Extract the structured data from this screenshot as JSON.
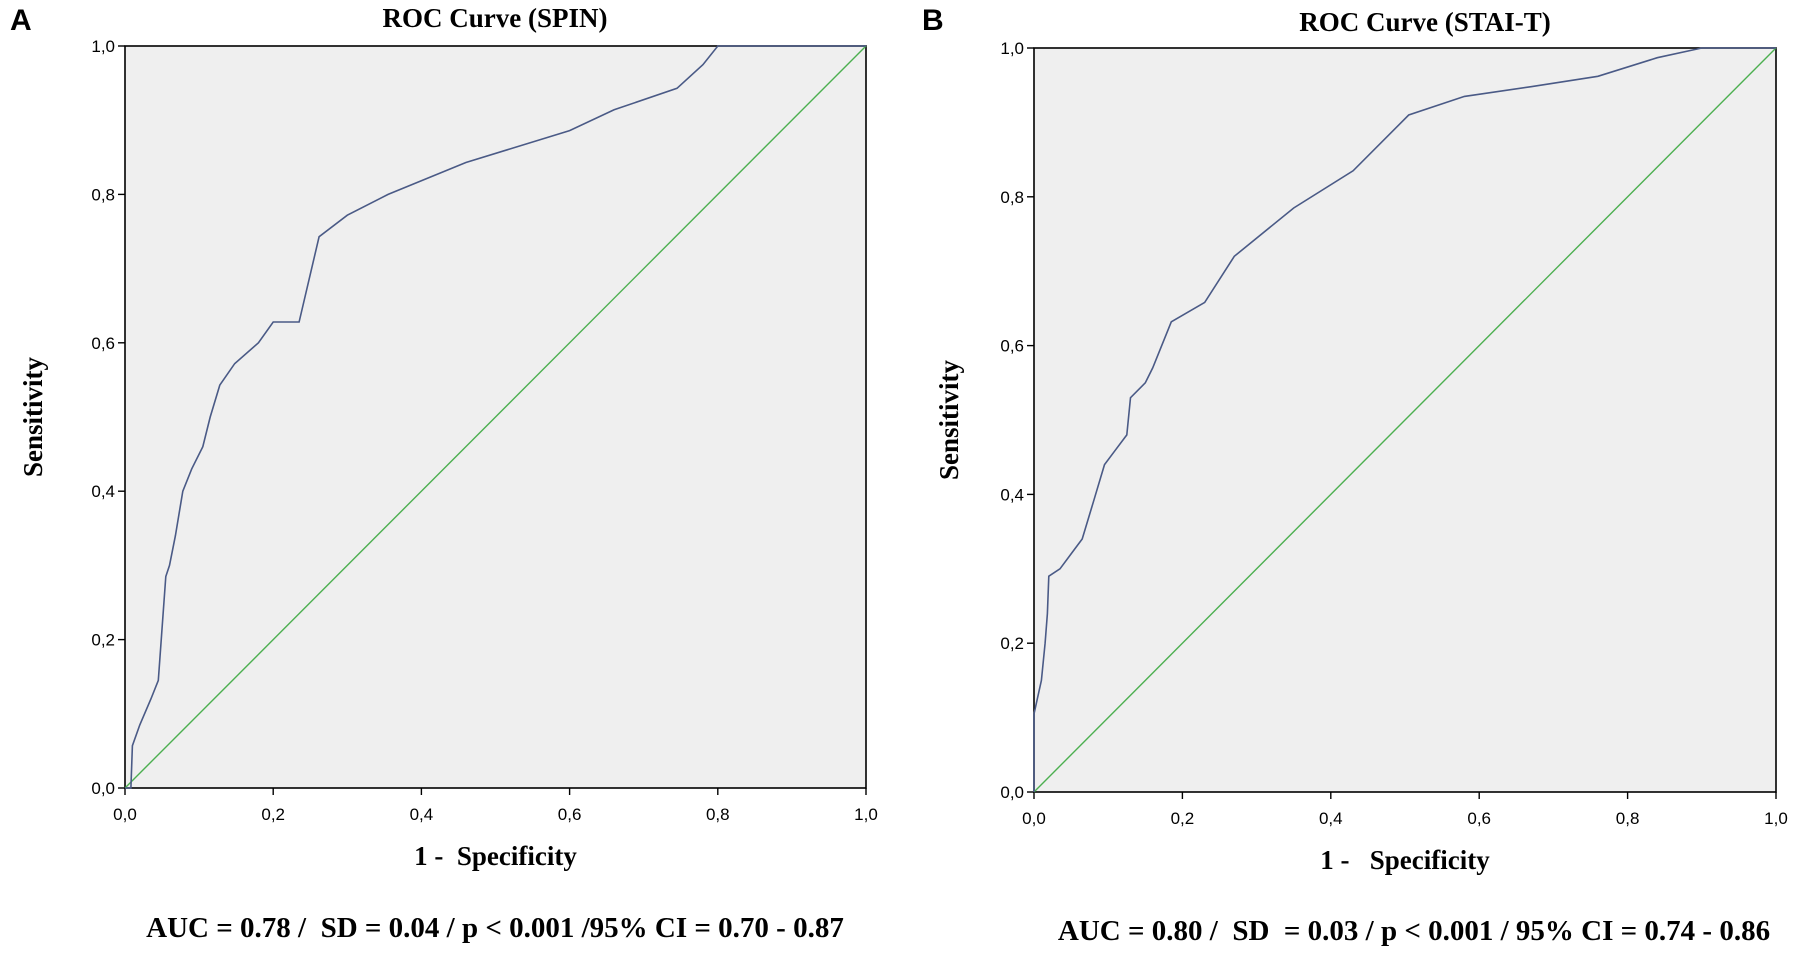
{
  "chart_data": [
    {
      "type": "line",
      "panel_label": "A",
      "title": "ROC Curve (SPIN)",
      "xlabel": "1 -  Specificity",
      "ylabel": "Sensitivity",
      "xlim": [
        0,
        1
      ],
      "ylim": [
        0,
        1
      ],
      "xticks": [
        "0,0",
        "0,2",
        "0,4",
        "0,6",
        "0,8",
        "1,0"
      ],
      "yticks": [
        "0,0",
        "0,2",
        "0,4",
        "0,6",
        "0,8",
        "1,0"
      ],
      "grid": false,
      "stats": "AUC = 0.78 /  SD = 0.04 / p < 0.001 /95% CI = 0.70 - 0.87",
      "colors": {
        "roc": "#4a5a86",
        "reference": "#4caf50",
        "background": "#efefef"
      },
      "series": [
        {
          "x": [
            0.0,
            0.008,
            0.01,
            0.02,
            0.035,
            0.045,
            0.055,
            0.06,
            0.068,
            0.078,
            0.09,
            0.105,
            0.115,
            0.128,
            0.148,
            0.18,
            0.2,
            0.235,
            0.262,
            0.3,
            0.355,
            0.46,
            0.6,
            0.66,
            0.745,
            0.78,
            0.8,
            1.0
          ],
          "y": [
            0.0,
            0.0,
            0.057,
            0.085,
            0.12,
            0.145,
            0.285,
            0.3,
            0.34,
            0.4,
            0.43,
            0.46,
            0.5,
            0.543,
            0.572,
            0.6,
            0.628,
            0.628,
            0.743,
            0.772,
            0.8,
            0.843,
            0.886,
            0.914,
            0.943,
            0.975,
            1.0,
            1.0
          ]
        },
        {
          "x": [
            0,
            1
          ],
          "y": [
            0,
            1
          ]
        }
      ]
    },
    {
      "type": "line",
      "panel_label": "B",
      "title": "ROC Curve (STAI-T)",
      "xlabel": "1 -   Specificity",
      "ylabel": "Sensitivity",
      "xlim": [
        0,
        1
      ],
      "ylim": [
        0,
        1
      ],
      "xticks": [
        "0,0",
        "0,2",
        "0,4",
        "0,6",
        "0,8",
        "1,0"
      ],
      "yticks": [
        "0,0",
        "0,2",
        "0,4",
        "0,6",
        "0,8",
        "1,0"
      ],
      "grid": false,
      "stats": "AUC = 0.80 /  SD  = 0.03 / p < 0.001 / 95% CI = 0.74 - 0.86",
      "colors": {
        "roc": "#4a5a86",
        "reference": "#4caf50",
        "background": "#efefef"
      },
      "series": [
        {
          "x": [
            0.0,
            0.0,
            0.01,
            0.015,
            0.018,
            0.02,
            0.035,
            0.05,
            0.065,
            0.08,
            0.095,
            0.11,
            0.125,
            0.13,
            0.15,
            0.16,
            0.185,
            0.23,
            0.27,
            0.35,
            0.43,
            0.505,
            0.58,
            0.67,
            0.76,
            0.84,
            0.9,
            1.0
          ],
          "y": [
            0.0,
            0.105,
            0.15,
            0.2,
            0.24,
            0.29,
            0.3,
            0.32,
            0.34,
            0.39,
            0.44,
            0.46,
            0.48,
            0.53,
            0.55,
            0.57,
            0.632,
            0.658,
            0.72,
            0.785,
            0.835,
            0.91,
            0.935,
            0.948,
            0.962,
            0.987,
            1.0,
            1.0
          ]
        },
        {
          "x": [
            0,
            1
          ],
          "y": [
            0,
            1
          ]
        }
      ]
    }
  ]
}
